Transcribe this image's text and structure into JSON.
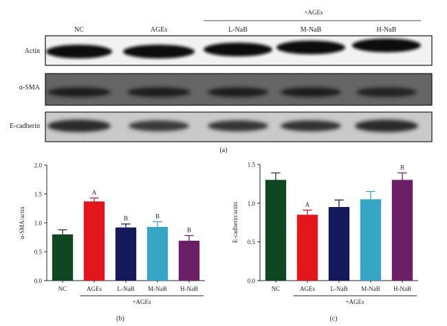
{
  "blot": {
    "lane_labels": [
      "NC",
      "AGEs",
      "L-NaB",
      "M-NaB",
      "H-NaB"
    ],
    "group_label": "+AGEs",
    "rows": [
      {
        "label": "Actin",
        "style": "strong"
      },
      {
        "label": "α-SMA",
        "style": "faint"
      },
      {
        "label": "E-cadherin",
        "style": "medium"
      }
    ],
    "panel_label": "(a)"
  },
  "chart_data": [
    {
      "type": "bar",
      "panel_label": "(b)",
      "ylabel": "α-SMA/actin",
      "categories": [
        "NC",
        "AGEs",
        "L-NaB",
        "M-NaB",
        "H-NaB"
      ],
      "values": [
        0.8,
        1.37,
        0.92,
        0.93,
        0.69
      ],
      "errors": [
        0.08,
        0.06,
        0.06,
        0.09,
        0.09
      ],
      "annotations": [
        "",
        "A",
        "B",
        "B",
        "B"
      ],
      "colors": [
        "#0f4723",
        "#e3161c",
        "#14195b",
        "#36a5c6",
        "#6a1f66"
      ],
      "ylim": [
        0,
        2.0
      ],
      "yticks": [
        "0.0",
        "0.5",
        "1.0",
        "1.5",
        "2.0"
      ],
      "group_label": "+AGEs"
    },
    {
      "type": "bar",
      "panel_label": "(c)",
      "ylabel": "E-cadherin/actin",
      "categories": [
        "NC",
        "AGEs",
        "L-NaB",
        "M-NaB",
        "H-NaB"
      ],
      "values": [
        1.3,
        0.85,
        0.95,
        1.05,
        1.3
      ],
      "errors": [
        0.09,
        0.06,
        0.09,
        0.1,
        0.09
      ],
      "annotations": [
        "",
        "A",
        "",
        "",
        "B"
      ],
      "colors": [
        "#0f4723",
        "#e3161c",
        "#14195b",
        "#36a5c6",
        "#6a1f66"
      ],
      "ylim": [
        0,
        1.5
      ],
      "yticks": [
        "0.0",
        "0.5",
        "1.0",
        "1.5"
      ],
      "group_label": "+AGEs"
    }
  ]
}
